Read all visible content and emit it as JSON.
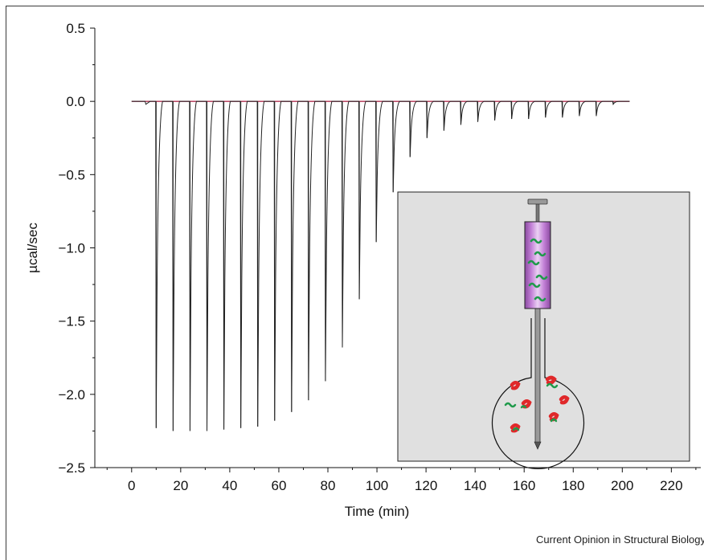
{
  "chart_data": {
    "type": "line",
    "title": "",
    "xlabel": "Time (min)",
    "ylabel": "µcal/sec",
    "xlim": [
      -15,
      232
    ],
    "ylim": [
      -2.5,
      0.5
    ],
    "x_ticks": [
      "0",
      "20",
      "40",
      "60",
      "80",
      "100",
      "120",
      "140",
      "160",
      "180",
      "200",
      "220"
    ],
    "y_ticks": [
      "0.5",
      "0.0",
      "−0.5",
      "−1.0",
      "−1.5",
      "−2.0",
      "−2.5"
    ],
    "grid": false,
    "baseline": 0.0,
    "series": [
      {
        "x": [
          10,
          16.9,
          23.8,
          30.7,
          37.6,
          44.5,
          51.4,
          58.3,
          65.2,
          72.1,
          79.0,
          85.9,
          92.8,
          99.7,
          106.6,
          113.5,
          120.4,
          127.3,
          134.2,
          141.1,
          148.0,
          154.9,
          161.8,
          168.7,
          175.6,
          182.5,
          189.4,
          196.3
        ],
        "values": [
          -2.23,
          -2.25,
          -2.25,
          -2.25,
          -2.24,
          -2.23,
          -2.22,
          -2.18,
          -2.12,
          -2.04,
          -1.91,
          -1.68,
          -1.35,
          -0.96,
          -0.62,
          -0.38,
          -0.25,
          -0.2,
          -0.16,
          -0.14,
          -0.13,
          -0.12,
          -0.12,
          -0.11,
          -0.11,
          -0.1,
          -0.1,
          -0.02
        ],
        "color": "#222222"
      }
    ],
    "baseline_color": "#b03050"
  },
  "inset": {
    "syringe_color": "#c27fd6",
    "ligand_color": "#1f9a4a",
    "protein_color": "#e0282a",
    "panel_color": "#e0e0e0"
  },
  "credit": "Current Opinion in Structural Biology"
}
